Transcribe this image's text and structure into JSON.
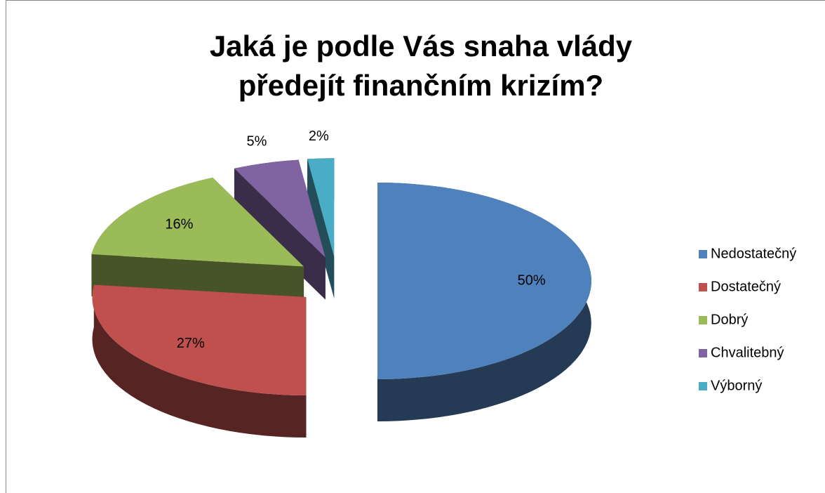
{
  "chart_data": {
    "type": "pie",
    "title": "Jaká je podle Vás snaha vlády předejít finančním krizím?",
    "categories": [
      "Nedostatečný",
      "Dostatečný",
      "Dobrý",
      "Chvalitebný",
      "Výborný"
    ],
    "values": [
      50,
      27,
      16,
      5,
      2
    ],
    "value_labels": [
      "50%",
      "27%",
      "16%",
      "5%",
      "2%"
    ],
    "colors": [
      "#4f81bd",
      "#c0504d",
      "#9bbb59",
      "#8064a2",
      "#4bacc6"
    ],
    "legend": "right"
  }
}
